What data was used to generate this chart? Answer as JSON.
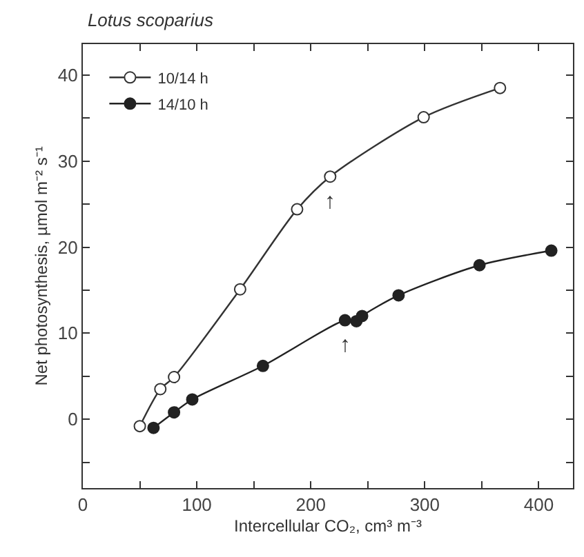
{
  "chart_data": {
    "type": "line",
    "title": "Lotus scoparius",
    "xlabel": "Intercellular CO₂, cm³ m⁻³",
    "ylabel": "Net photosynthesis, µmol m⁻² s⁻¹",
    "series": [
      {
        "name": "10/14 h",
        "color": "#333333",
        "x": [
          50,
          68,
          80,
          138,
          188,
          217,
          299,
          366
        ],
        "values": [
          -0.8,
          3.5,
          4.9,
          15.1,
          24.4,
          28.2,
          35.1,
          38.5
        ]
      },
      {
        "name": "14/10 h",
        "color": "#222222",
        "x": [
          62,
          80,
          96,
          158,
          230,
          240,
          245,
          277,
          348,
          411
        ],
        "values": [
          -1.0,
          0.8,
          2.3,
          6.2,
          11.5,
          11.4,
          12.0,
          14.4,
          17.9,
          19.6
        ]
      }
    ],
    "annotations": [
      {
        "text": "↑",
        "x": 217,
        "y": 28.2
      },
      {
        "text": "↑",
        "x": 230,
        "y": 11.5
      }
    ],
    "xlim": [
      0,
      430
    ],
    "ylim": [
      -8,
      43.6
    ],
    "xticks": [
      0,
      {
        "value": 50,
        "label": null
      },
      100,
      {
        "value": 150,
        "label": null
      },
      200,
      {
        "value": 250,
        "label": null
      },
      300,
      {
        "value": 350,
        "label": null
      },
      400
    ],
    "yticks": [
      {
        "value": -5,
        "label": null
      },
      0,
      {
        "value": 5,
        "label": null
      },
      10,
      {
        "value": 15,
        "label": null
      },
      20,
      {
        "value": 25,
        "label": null
      },
      30,
      {
        "value": 35,
        "label": null
      },
      40
    ],
    "marker": "circle",
    "line_style": "solid",
    "legend": "top left"
  }
}
